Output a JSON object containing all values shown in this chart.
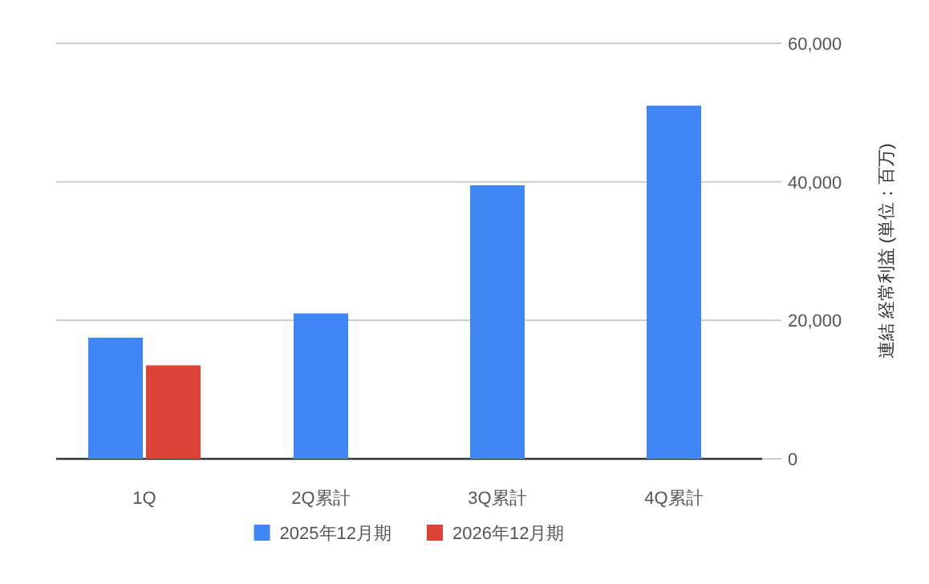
{
  "chart_data": {
    "type": "bar",
    "categories": [
      "1Q",
      "2Q累計",
      "3Q累計",
      "4Q累計"
    ],
    "series": [
      {
        "name": "2025年12月期",
        "color": "#4285f4",
        "values": [
          17500,
          21000,
          39500,
          51000
        ]
      },
      {
        "name": "2026年12月期",
        "color": "#db4437",
        "values": [
          13500,
          null,
          null,
          null
        ]
      }
    ],
    "ylabel": "連結 経常利益 (単位：百万)",
    "ylim": [
      0,
      60000
    ],
    "yticks": [
      0,
      {
        "value": 20000,
        "label": "20,000"
      },
      {
        "value": 40000,
        "label": "40,000"
      },
      {
        "value": 60000,
        "label": "60,000"
      }
    ],
    "grid": "y",
    "legend": "bottom"
  }
}
